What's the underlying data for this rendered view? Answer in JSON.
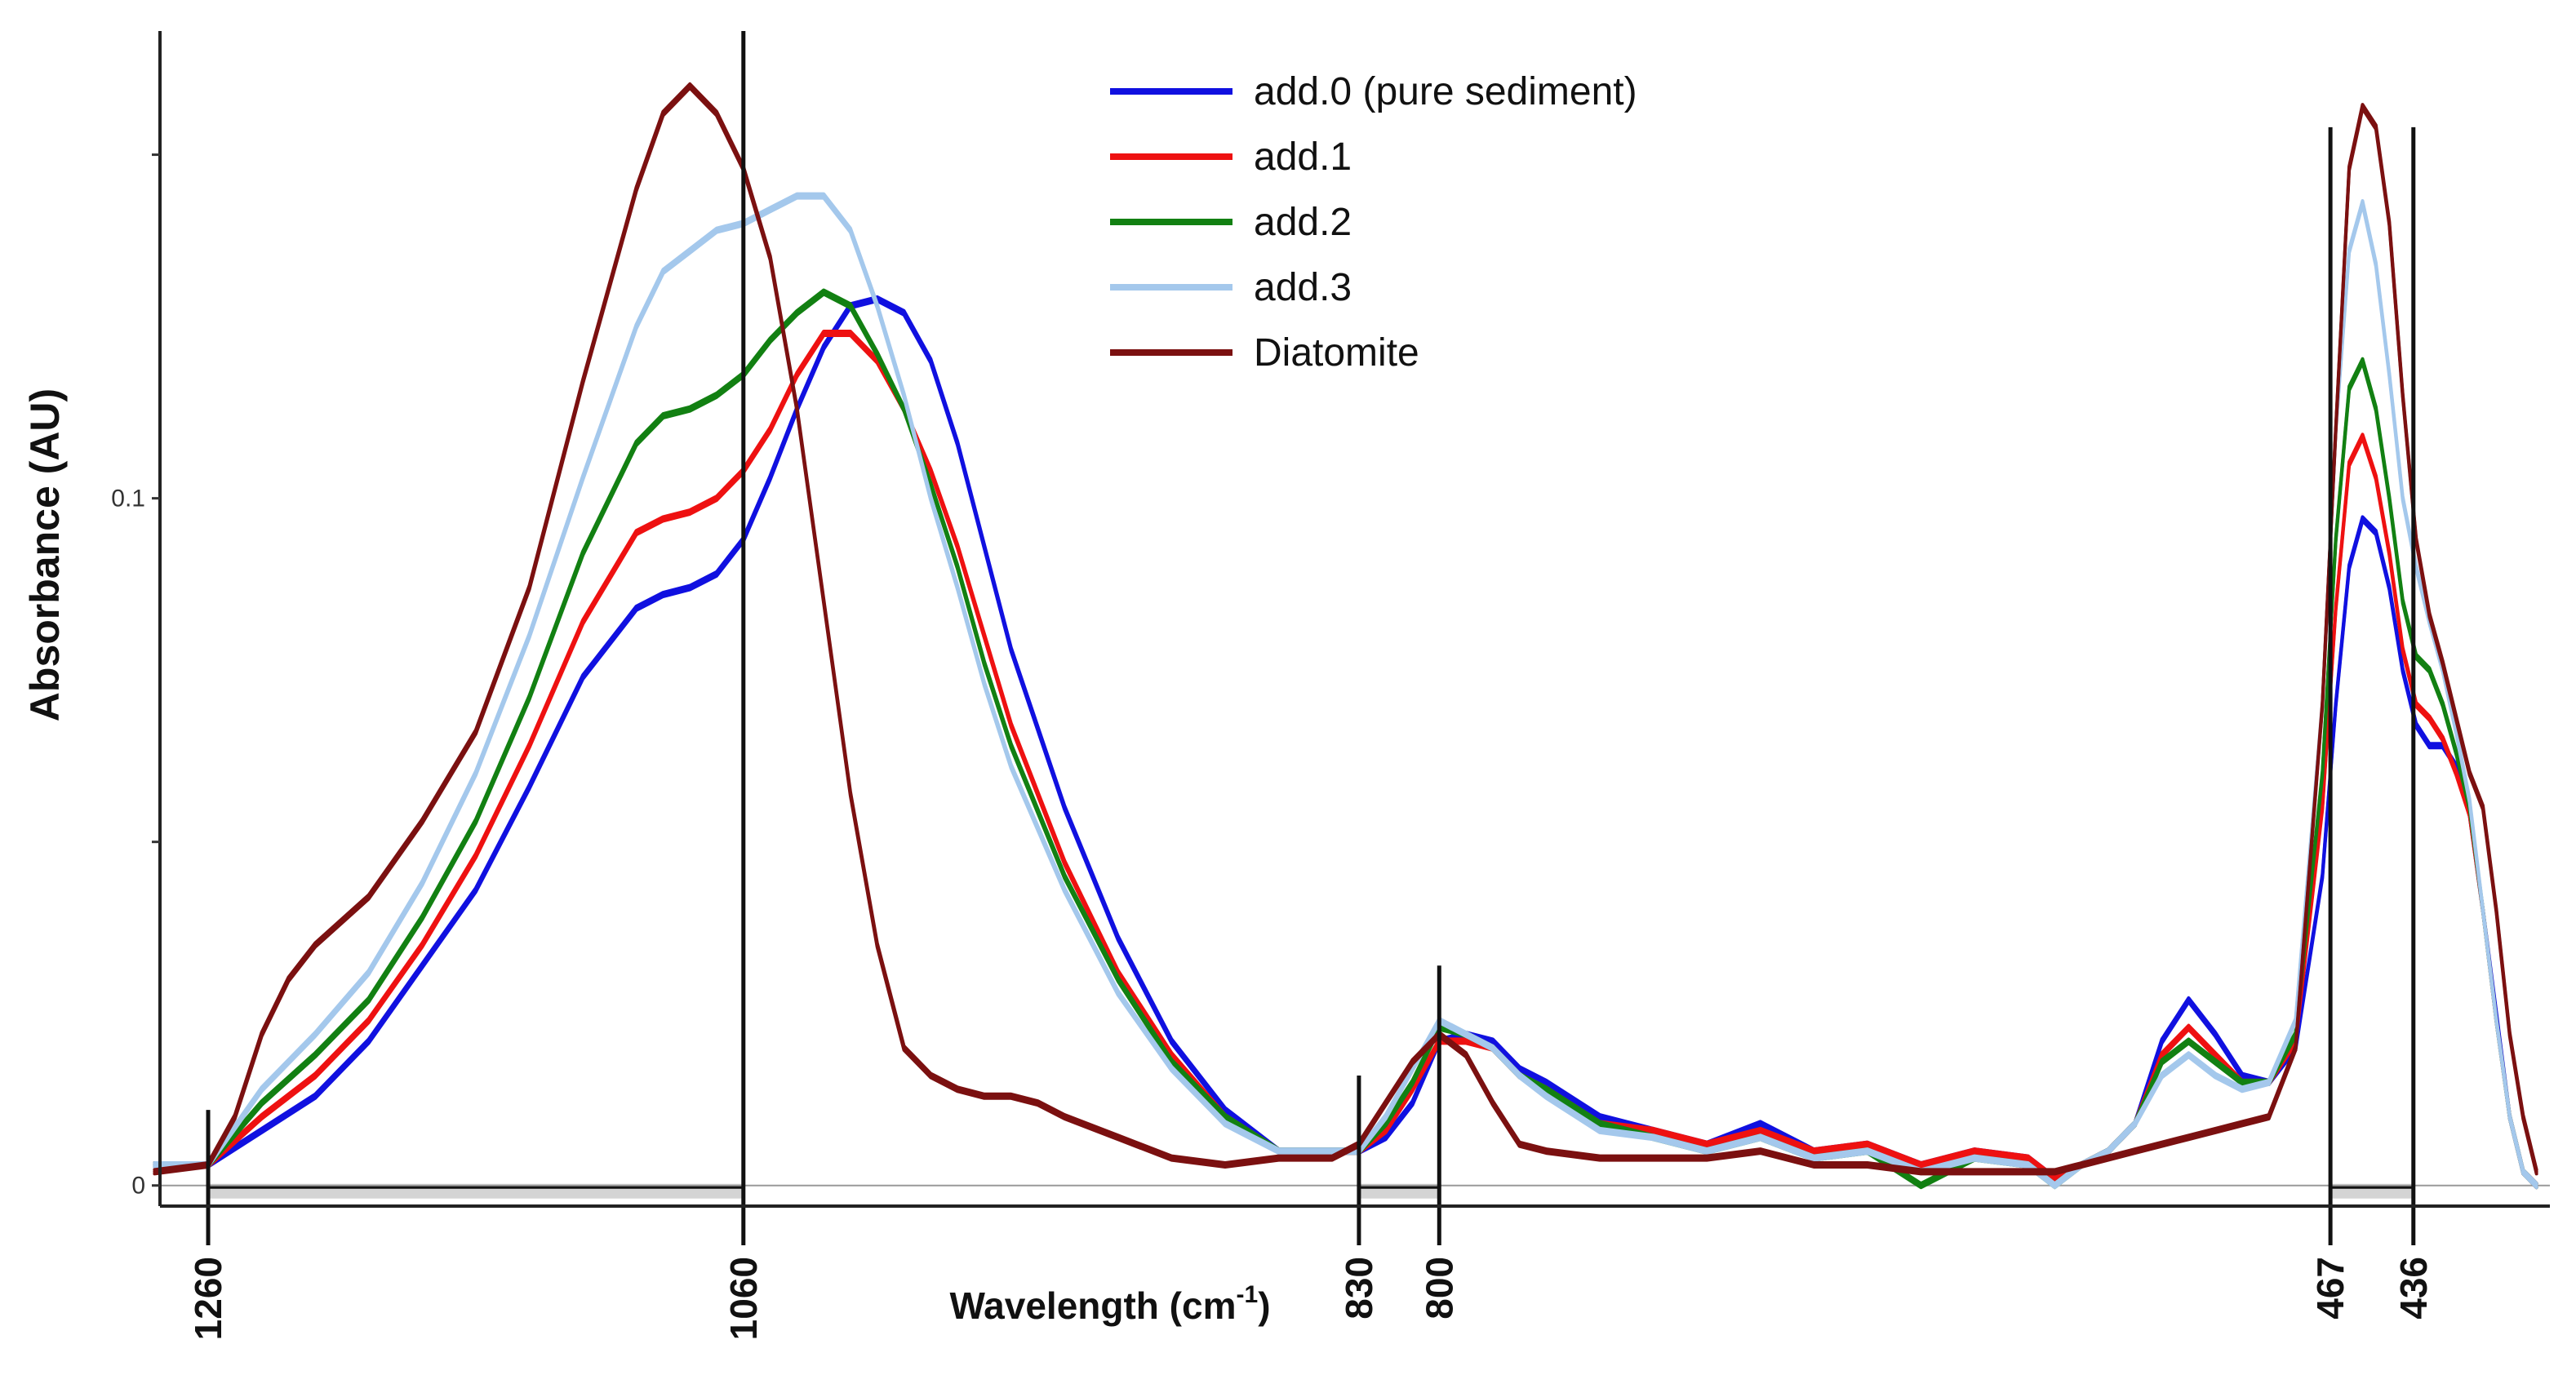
{
  "chart_data": {
    "type": "line",
    "title": "",
    "xlabel": "Wavelength (cm",
    "xlabel_sup": "-1",
    "xlabel_close": ")",
    "ylabel": "Absorbance (AU)",
    "xlim": [
      1278,
      385
    ],
    "ylim": [
      -0.003,
      0.168
    ],
    "x_reversed": true,
    "y_ticks": [
      0,
      0.05,
      0.1,
      0.15
    ],
    "y_tick_labels": [
      "0",
      "",
      "0.1",
      ""
    ],
    "grid": false,
    "legend_position": "top-center",
    "marker_lines": [
      {
        "x": 1260,
        "label": "1260",
        "ytop": 0.011
      },
      {
        "x": 1060,
        "label": "1060",
        "ytop": 0.168
      },
      {
        "x": 830,
        "label": "830",
        "ytop": 0.016
      },
      {
        "x": 800,
        "label": "800",
        "ytop": 0.032
      },
      {
        "x": 467,
        "label": "467",
        "ytop": 0.154
      },
      {
        "x": 436,
        "label": "436",
        "ytop": 0.154
      }
    ],
    "shaded_ranges": [
      {
        "from": 1260,
        "to": 1060
      },
      {
        "from": 830,
        "to": 800
      },
      {
        "from": 467,
        "to": 436
      }
    ],
    "series": [
      {
        "name": "add.0 (pure sediment)",
        "color": "#1010e0",
        "x": [
          1280,
          1260,
          1240,
          1220,
          1200,
          1180,
          1160,
          1140,
          1120,
          1100,
          1090,
          1080,
          1070,
          1060,
          1050,
          1040,
          1030,
          1020,
          1010,
          1000,
          990,
          980,
          970,
          960,
          940,
          920,
          900,
          880,
          860,
          840,
          830,
          820,
          810,
          800,
          790,
          780,
          770,
          760,
          740,
          720,
          700,
          680,
          660,
          640,
          620,
          600,
          580,
          570,
          560,
          550,
          540,
          530,
          520,
          510,
          500,
          490,
          480,
          470,
          465,
          460,
          455,
          450,
          445,
          440,
          435,
          430,
          425,
          420,
          415,
          410,
          405,
          400,
          395,
          390
        ],
        "y": [
          0.003,
          0.003,
          0.008,
          0.013,
          0.021,
          0.032,
          0.043,
          0.058,
          0.074,
          0.084,
          0.086,
          0.087,
          0.089,
          0.094,
          0.103,
          0.113,
          0.122,
          0.128,
          0.129,
          0.127,
          0.12,
          0.108,
          0.093,
          0.078,
          0.055,
          0.036,
          0.021,
          0.011,
          0.005,
          0.005,
          0.005,
          0.007,
          0.012,
          0.021,
          0.022,
          0.021,
          0.017,
          0.015,
          0.01,
          0.008,
          0.006,
          0.009,
          0.005,
          0.006,
          0.003,
          0.005,
          0.004,
          0.001,
          0.003,
          0.005,
          0.009,
          0.021,
          0.027,
          0.022,
          0.016,
          0.015,
          0.02,
          0.045,
          0.07,
          0.09,
          0.097,
          0.095,
          0.087,
          0.075,
          0.067,
          0.064,
          0.064,
          0.061,
          0.054,
          0.04,
          0.025,
          0.01,
          0.002,
          0.0
        ]
      },
      {
        "name": "add.1",
        "color": "#ee1111",
        "x": [
          1280,
          1260,
          1240,
          1220,
          1200,
          1180,
          1160,
          1140,
          1120,
          1100,
          1090,
          1080,
          1070,
          1060,
          1050,
          1040,
          1030,
          1020,
          1010,
          1000,
          990,
          980,
          970,
          960,
          940,
          920,
          900,
          880,
          860,
          840,
          830,
          820,
          810,
          800,
          790,
          780,
          770,
          760,
          740,
          720,
          700,
          680,
          660,
          640,
          620,
          600,
          580,
          570,
          560,
          550,
          540,
          530,
          520,
          510,
          500,
          490,
          480,
          470,
          465,
          460,
          455,
          450,
          445,
          440,
          435,
          430,
          425,
          420,
          415,
          410,
          405,
          400,
          395,
          390
        ],
        "y": [
          0.003,
          0.003,
          0.01,
          0.016,
          0.024,
          0.035,
          0.048,
          0.064,
          0.082,
          0.095,
          0.097,
          0.098,
          0.1,
          0.104,
          0.11,
          0.118,
          0.124,
          0.124,
          0.12,
          0.113,
          0.104,
          0.093,
          0.08,
          0.067,
          0.047,
          0.031,
          0.019,
          0.01,
          0.005,
          0.005,
          0.005,
          0.008,
          0.014,
          0.021,
          0.021,
          0.02,
          0.016,
          0.014,
          0.009,
          0.008,
          0.006,
          0.008,
          0.005,
          0.006,
          0.003,
          0.005,
          0.004,
          0.001,
          0.003,
          0.005,
          0.009,
          0.019,
          0.023,
          0.019,
          0.015,
          0.015,
          0.021,
          0.055,
          0.084,
          0.105,
          0.109,
          0.103,
          0.092,
          0.078,
          0.07,
          0.068,
          0.065,
          0.06,
          0.054,
          0.04,
          0.024,
          0.01,
          0.002,
          0.0
        ]
      },
      {
        "name": "add.2",
        "color": "#128012",
        "x": [
          1280,
          1260,
          1240,
          1220,
          1200,
          1180,
          1160,
          1140,
          1120,
          1100,
          1090,
          1080,
          1070,
          1060,
          1050,
          1040,
          1030,
          1020,
          1010,
          1000,
          990,
          980,
          970,
          960,
          940,
          920,
          900,
          880,
          860,
          840,
          830,
          820,
          810,
          800,
          790,
          780,
          770,
          760,
          740,
          720,
          700,
          680,
          660,
          640,
          620,
          600,
          580,
          570,
          560,
          550,
          540,
          530,
          520,
          510,
          500,
          490,
          480,
          470,
          465,
          460,
          455,
          450,
          445,
          440,
          435,
          430,
          425,
          420,
          415,
          410,
          405,
          400,
          395,
          390
        ],
        "y": [
          0.003,
          0.003,
          0.012,
          0.019,
          0.027,
          0.039,
          0.053,
          0.071,
          0.092,
          0.108,
          0.112,
          0.113,
          0.115,
          0.118,
          0.123,
          0.127,
          0.13,
          0.128,
          0.121,
          0.113,
          0.102,
          0.09,
          0.076,
          0.064,
          0.045,
          0.03,
          0.018,
          0.01,
          0.005,
          0.005,
          0.005,
          0.009,
          0.015,
          0.023,
          0.022,
          0.02,
          0.016,
          0.014,
          0.009,
          0.007,
          0.005,
          0.007,
          0.004,
          0.005,
          0.0,
          0.004,
          0.003,
          0.0,
          0.003,
          0.005,
          0.009,
          0.018,
          0.021,
          0.018,
          0.015,
          0.015,
          0.022,
          0.06,
          0.094,
          0.116,
          0.12,
          0.113,
          0.1,
          0.085,
          0.077,
          0.075,
          0.07,
          0.063,
          0.055,
          0.04,
          0.024,
          0.01,
          0.002,
          0.0
        ]
      },
      {
        "name": "add.3",
        "color": "#a4c8ec",
        "x": [
          1280,
          1260,
          1240,
          1220,
          1200,
          1180,
          1160,
          1140,
          1120,
          1100,
          1090,
          1080,
          1070,
          1060,
          1050,
          1040,
          1030,
          1020,
          1010,
          1000,
          990,
          980,
          970,
          960,
          940,
          920,
          900,
          880,
          860,
          840,
          830,
          820,
          810,
          800,
          790,
          780,
          770,
          760,
          740,
          720,
          700,
          680,
          660,
          640,
          620,
          600,
          580,
          570,
          560,
          550,
          540,
          530,
          520,
          510,
          500,
          490,
          480,
          470,
          465,
          460,
          455,
          450,
          445,
          440,
          435,
          430,
          425,
          420,
          415,
          410,
          405,
          400,
          395,
          390
        ],
        "y": [
          0.003,
          0.003,
          0.014,
          0.022,
          0.031,
          0.044,
          0.06,
          0.08,
          0.103,
          0.125,
          0.133,
          0.136,
          0.139,
          0.14,
          0.142,
          0.144,
          0.144,
          0.139,
          0.128,
          0.115,
          0.1,
          0.087,
          0.073,
          0.061,
          0.043,
          0.028,
          0.017,
          0.009,
          0.005,
          0.005,
          0.005,
          0.01,
          0.017,
          0.024,
          0.022,
          0.02,
          0.016,
          0.013,
          0.008,
          0.007,
          0.005,
          0.007,
          0.004,
          0.005,
          0.002,
          0.004,
          0.003,
          0.0,
          0.003,
          0.005,
          0.009,
          0.016,
          0.019,
          0.016,
          0.014,
          0.015,
          0.024,
          0.07,
          0.11,
          0.136,
          0.143,
          0.134,
          0.118,
          0.1,
          0.09,
          0.082,
          0.075,
          0.066,
          0.056,
          0.04,
          0.024,
          0.01,
          0.002,
          0.0
        ]
      },
      {
        "name": "Diatomite",
        "color": "#7b1010",
        "x": [
          1280,
          1260,
          1250,
          1240,
          1230,
          1220,
          1200,
          1180,
          1160,
          1140,
          1120,
          1100,
          1090,
          1080,
          1070,
          1060,
          1050,
          1040,
          1030,
          1020,
          1010,
          1000,
          990,
          980,
          970,
          960,
          950,
          940,
          920,
          900,
          880,
          860,
          840,
          830,
          820,
          810,
          800,
          790,
          780,
          770,
          760,
          740,
          720,
          700,
          680,
          660,
          640,
          620,
          600,
          580,
          570,
          560,
          550,
          540,
          530,
          520,
          510,
          500,
          490,
          480,
          470,
          465,
          460,
          455,
          450,
          445,
          440,
          435,
          430,
          425,
          420,
          415,
          410,
          405,
          400,
          395,
          390
        ],
        "y": [
          0.002,
          0.003,
          0.01,
          0.022,
          0.03,
          0.035,
          0.042,
          0.053,
          0.066,
          0.087,
          0.117,
          0.145,
          0.156,
          0.16,
          0.156,
          0.148,
          0.135,
          0.113,
          0.085,
          0.057,
          0.035,
          0.02,
          0.016,
          0.014,
          0.013,
          0.013,
          0.012,
          0.01,
          0.007,
          0.004,
          0.003,
          0.004,
          0.004,
          0.006,
          0.012,
          0.018,
          0.022,
          0.019,
          0.012,
          0.006,
          0.005,
          0.004,
          0.004,
          0.004,
          0.005,
          0.003,
          0.003,
          0.002,
          0.002,
          0.002,
          0.002,
          0.003,
          0.004,
          0.005,
          0.006,
          0.007,
          0.008,
          0.009,
          0.01,
          0.02,
          0.07,
          0.11,
          0.148,
          0.157,
          0.154,
          0.14,
          0.115,
          0.094,
          0.083,
          0.076,
          0.068,
          0.06,
          0.055,
          0.04,
          0.022,
          0.01,
          0.002
        ]
      }
    ]
  }
}
